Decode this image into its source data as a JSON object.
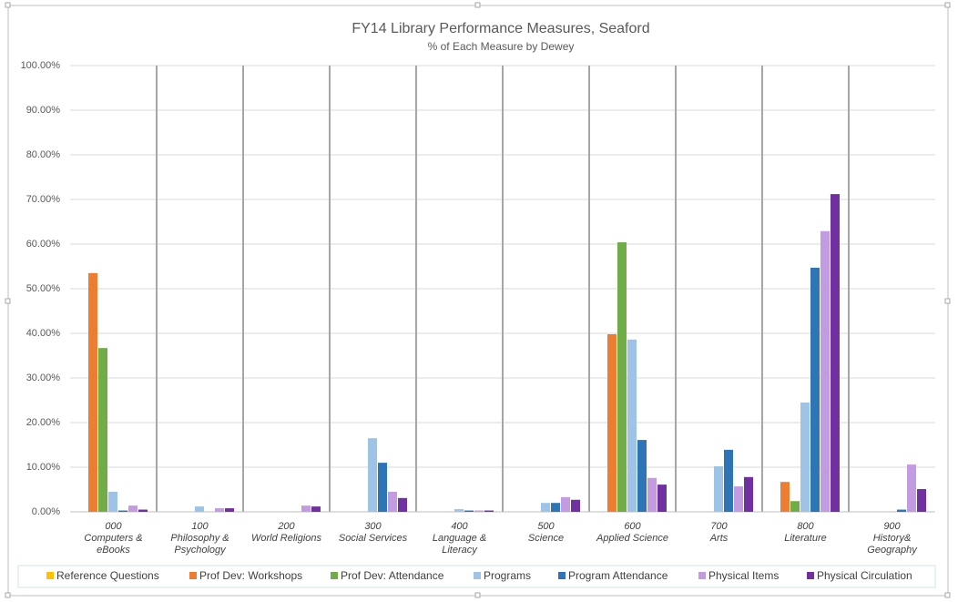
{
  "chart_data": {
    "type": "bar",
    "title": "FY14 Library Performance Measures, Seaford",
    "subtitle": "% of Each Measure by Dewey",
    "categories": [
      "000\nComputers &\neBooks",
      "100\nPhilosophy &\nPsychology",
      "200\nWorld Religions",
      "300\nSocial Services",
      "400\nLanguage &\nLiteracy",
      "500\nScience",
      "600\nApplied Science",
      "700\nArts",
      "800\nLiterature",
      "900\nHistory&\nGeography"
    ],
    "series": [
      {
        "name": "Reference Questions",
        "color": "#ffc000",
        "values": [
          0,
          0,
          0,
          0,
          0,
          0,
          0,
          0,
          0,
          0
        ]
      },
      {
        "name": "Prof Dev: Workshops",
        "color": "#ed7d31",
        "values": [
          53.5,
          0,
          0,
          0,
          0,
          0,
          39.8,
          0,
          6.7,
          0
        ]
      },
      {
        "name": "Prof Dev: Attendance",
        "color": "#70ad47",
        "values": [
          36.7,
          0,
          0,
          0,
          0,
          0,
          60.4,
          0,
          2.4,
          0
        ]
      },
      {
        "name": "Programs",
        "color": "#9dc3e6",
        "values": [
          4.5,
          1.2,
          0,
          16.5,
          0.6,
          2.0,
          38.6,
          10.2,
          24.5,
          0
        ]
      },
      {
        "name": "Program Attendance",
        "color": "#2e75b6",
        "values": [
          0.3,
          0,
          0,
          11.0,
          0.3,
          2.0,
          16.1,
          13.9,
          54.7,
          0.5
        ]
      },
      {
        "name": "Physical Items",
        "color": "#c39be0",
        "values": [
          1.4,
          0.8,
          1.4,
          4.5,
          0.3,
          3.3,
          7.6,
          5.7,
          62.9,
          10.6
        ]
      },
      {
        "name": "Physical Circulation",
        "color": "#7030a0",
        "values": [
          0.5,
          0.8,
          1.2,
          3.1,
          0.3,
          2.7,
          6.1,
          7.8,
          71.2,
          5.1
        ]
      }
    ],
    "ylim": [
      0,
      100
    ],
    "yticks": [
      {
        "value": 0,
        "label": "0.00%"
      },
      {
        "value": 10,
        "label": "10.00%"
      },
      {
        "value": 20,
        "label": "20.00%"
      },
      {
        "value": 30,
        "label": "30.00%"
      },
      {
        "value": 40,
        "label": "40.00%"
      },
      {
        "value": 50,
        "label": "50.00%"
      },
      {
        "value": 60,
        "label": "60.00%"
      },
      {
        "value": 70,
        "label": "70.00%"
      },
      {
        "value": 80,
        "label": "80.00%"
      },
      {
        "value": 90,
        "label": "90.00%"
      },
      {
        "value": 100,
        "label": "100.00%"
      }
    ],
    "grid": true,
    "legend": "bottom"
  }
}
